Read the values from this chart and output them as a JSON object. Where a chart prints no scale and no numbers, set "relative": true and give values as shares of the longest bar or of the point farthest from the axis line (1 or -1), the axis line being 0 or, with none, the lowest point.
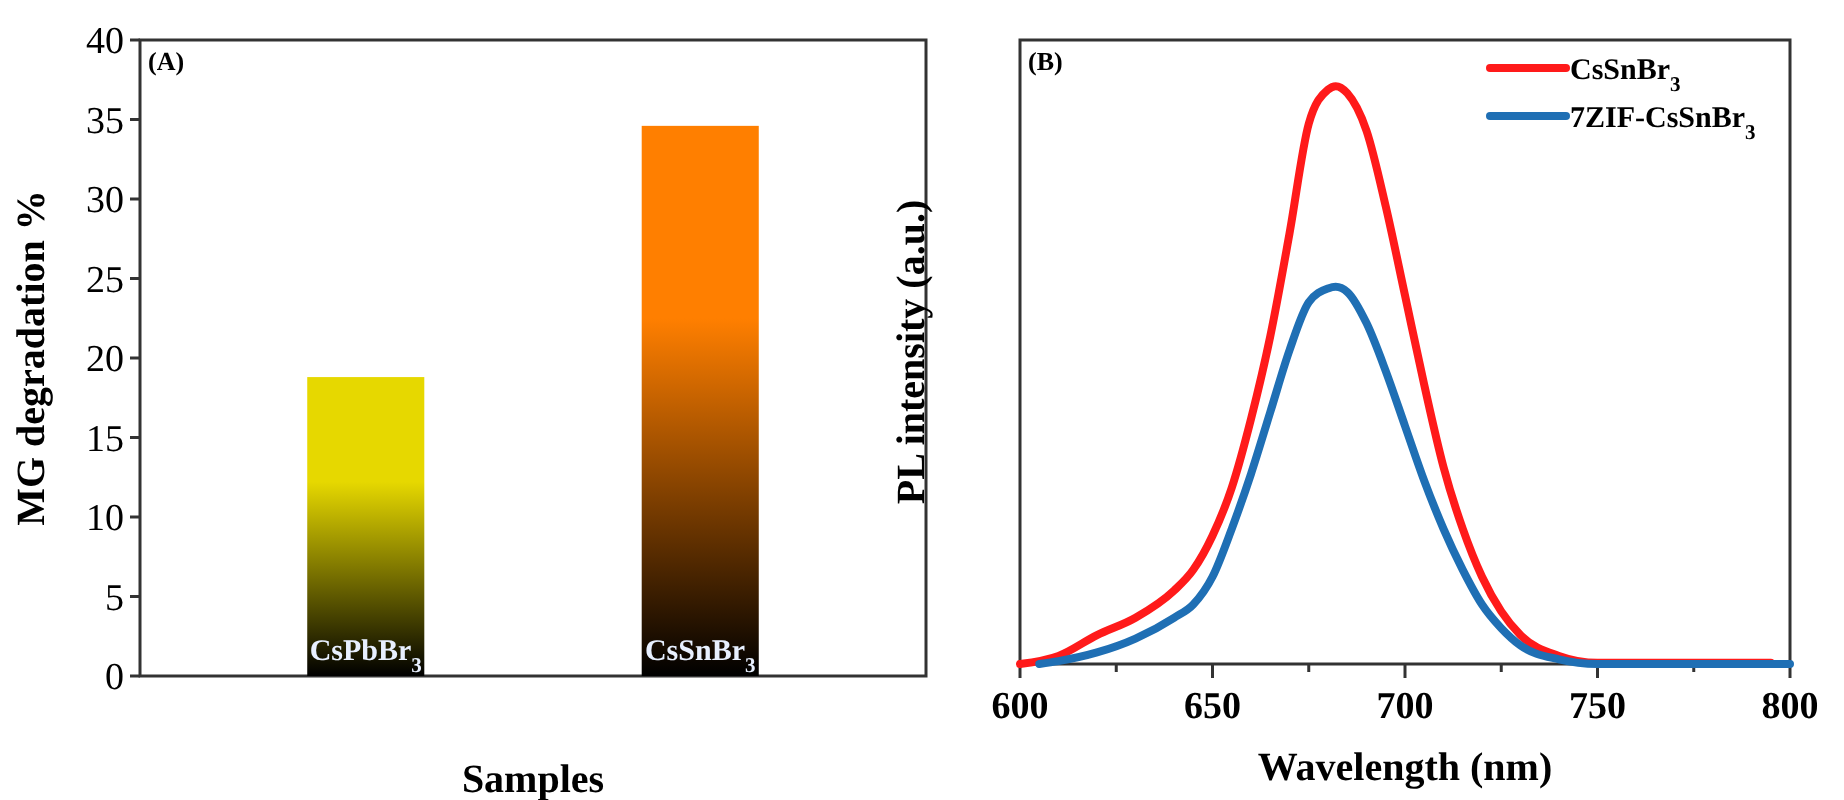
{
  "chart_data": [
    {
      "type": "bar",
      "annotations": [
        "(A)"
      ],
      "xlabel": "Samples",
      "ylabel": "MG degradation %",
      "categories": [
        "CsPbBr$_{3}$",
        "CsSnBr$_{3}$"
      ],
      "values": [
        18.8,
        34.6
      ],
      "colors": [
        "#e6d800",
        "#ff7f00"
      ],
      "ylim": [
        0,
        40
      ],
      "yticks": [
        0,
        5,
        10,
        15,
        20,
        25,
        30,
        35,
        40
      ]
    },
    {
      "type": "line",
      "annotations": [
        "(B)"
      ],
      "xlabel": "Wavelength (nm)",
      "ylabel": "PL intensity (a.u.)",
      "relative": true,
      "xlim": [
        600,
        800
      ],
      "xticks": [
        600,
        {
          "value": 625,
          "label": null
        },
        650,
        {
          "value": 675,
          "label": null
        },
        700,
        {
          "value": 725,
          "label": null
        },
        750,
        {
          "value": 775,
          "label": null
        },
        800
      ],
      "legend": "top right",
      "series": [
        {
          "name": "CsSnBr$_{3}$",
          "color": "#ff1a1a",
          "x": [
            600,
            610,
            620,
            630,
            640,
            645,
            650,
            655,
            660,
            665,
            670,
            675,
            680,
            682,
            685,
            690,
            695,
            700,
            705,
            710,
            715,
            720,
            725,
            730,
            740,
            750,
            760,
            770,
            780,
            795
          ],
          "values": [
            0,
            0.014,
            0.05,
            0.08,
            0.127,
            0.163,
            0.222,
            0.305,
            0.424,
            0.567,
            0.745,
            0.935,
            0.994,
            1,
            0.988,
            0.923,
            0.792,
            0.638,
            0.483,
            0.341,
            0.234,
            0.151,
            0.091,
            0.05,
            0.014,
            0.002,
            0.002,
            0.002,
            0.002,
            0.002
          ]
        },
        {
          "name": "7ZIF-CsSnBr$_{3}$",
          "color": "#1f6fb4",
          "x": [
            605,
            610,
            620,
            630,
            640,
            645,
            650,
            655,
            660,
            665,
            670,
            675,
            680,
            682,
            685,
            690,
            695,
            700,
            705,
            710,
            715,
            720,
            725,
            730,
            740,
            750,
            770,
            800
          ],
          "values": [
            0,
            0.005,
            0.02,
            0.044,
            0.08,
            0.103,
            0.151,
            0.234,
            0.329,
            0.436,
            0.543,
            0.626,
            0.65,
            0.653,
            0.644,
            0.59,
            0.507,
            0.412,
            0.317,
            0.234,
            0.163,
            0.103,
            0.062,
            0.032,
            0.008,
            0,
            0,
            0
          ]
        }
      ]
    }
  ]
}
